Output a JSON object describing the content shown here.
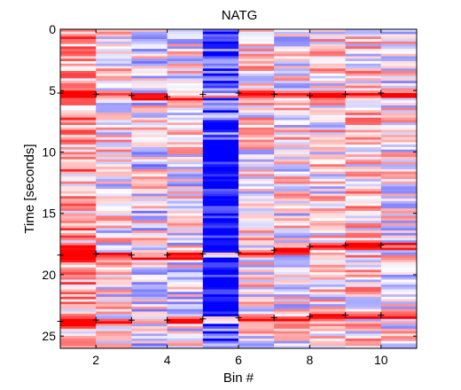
{
  "chart_data": {
    "type": "heatmap",
    "title": "NATG",
    "xlabel": "Bin #",
    "ylabel": "Time [seconds]",
    "xlim": [
      1,
      11
    ],
    "ylim": [
      0,
      26
    ],
    "y_reversed": true,
    "x_ticks": [
      "2",
      "4",
      "6",
      "8",
      "10"
    ],
    "y_ticks": [
      "0",
      "5",
      "10",
      "15",
      "20",
      "25"
    ],
    "colormap": [
      "#0000ff",
      "#ffffff",
      "#ff0000"
    ],
    "value_range": [
      -1,
      1
    ],
    "bins": 10,
    "marker_rows": [
      [
        5.2,
        5.3,
        5.4,
        5.5,
        5.3,
        5.2,
        5.3,
        5.4,
        5.3,
        5.2
      ],
      [
        18.4,
        18.3,
        18.4,
        18.4,
        18.3,
        18.2,
        18.0,
        17.7,
        17.6,
        17.6
      ],
      [
        23.8,
        23.7,
        23.7,
        23.7,
        23.6,
        23.5,
        23.5,
        23.4,
        23.3,
        23.3
      ]
    ]
  }
}
